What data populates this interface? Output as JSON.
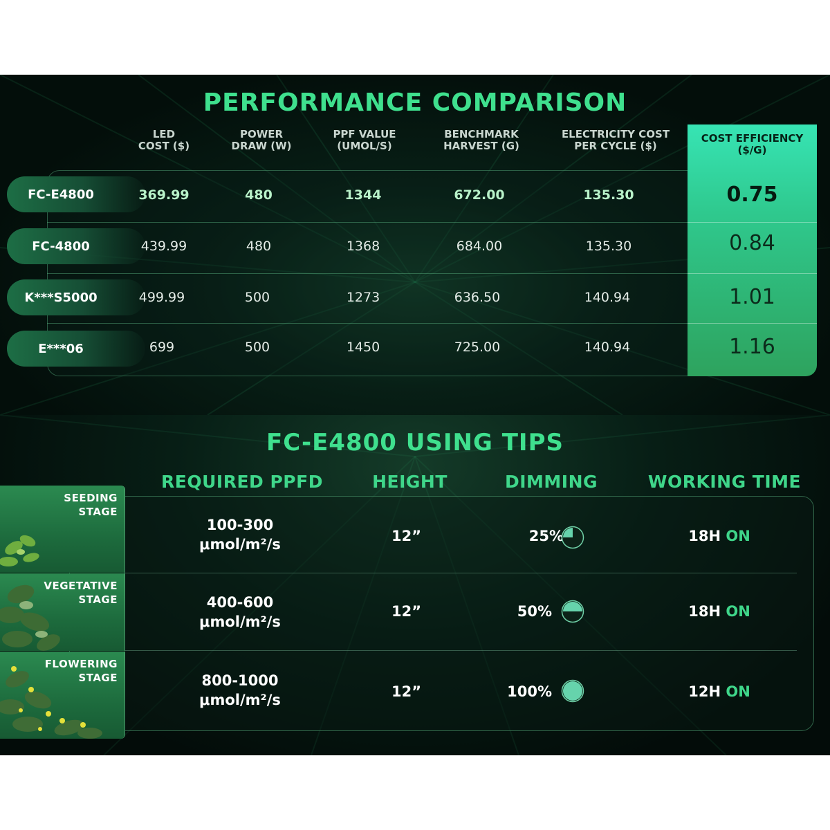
{
  "comparison": {
    "title": "PERFORMANCE COMPARISON",
    "columns": [
      {
        "line1": "LED",
        "line2": "COST ($)"
      },
      {
        "line1": "POWER",
        "line2": "DRAW (W)"
      },
      {
        "line1": "PPF VALUE",
        "line2": "(UMOL/S)"
      },
      {
        "line1": "BENCHMARK",
        "line2": "HARVEST (G)"
      },
      {
        "line1": "ELECTRICITY COST",
        "line2": "PER CYCLE ($)"
      }
    ],
    "efficiency_header": {
      "line1": "COST EFFICIENCY",
      "line2": "($/G)"
    },
    "rows": [
      {
        "model": "FC-E4800",
        "led_cost": "369.99",
        "power": "480",
        "ppf": "1344",
        "harvest": "672.00",
        "electricity": "135.30",
        "efficiency": "0.75"
      },
      {
        "model": "FC-4800",
        "led_cost": "439.99",
        "power": "480",
        "ppf": "1368",
        "harvest": "684.00",
        "electricity": "135.30",
        "efficiency": "0.84"
      },
      {
        "model": "K***S5000",
        "led_cost": "499.99",
        "power": "500",
        "ppf": "1273",
        "harvest": "636.50",
        "electricity": "140.94",
        "efficiency": "1.01"
      },
      {
        "model": "E***06",
        "led_cost": "699",
        "power": "500",
        "ppf": "1450",
        "harvest": "725.00",
        "electricity": "140.94",
        "efficiency": "1.16"
      }
    ],
    "colors": {
      "accent": "#3fe08e",
      "efficiency_top": "#37e4b4",
      "efficiency_bottom": "#2ea35e",
      "pill": "#1d6e45"
    }
  },
  "tips": {
    "title": "FC-E4800 USING TIPS",
    "headers": {
      "ppfd": "REQUIRED PPFD",
      "height": "HEIGHT",
      "dimming": "DIMMING",
      "working_time": "WORKING TIME"
    },
    "stages": [
      {
        "label_line1": "SEEDING",
        "label_line2": "STAGE",
        "ppfd_range": "100-300",
        "ppfd_unit": "μmol/m²/s",
        "height": "12”",
        "dimming": "25%",
        "dimming_level": 0.25,
        "hours": "18H",
        "on": "ON"
      },
      {
        "label_line1": "VEGETATIVE",
        "label_line2": "STAGE",
        "ppfd_range": "400-600",
        "ppfd_unit": "μmol/m²/s",
        "height": "12”",
        "dimming": "50%",
        "dimming_level": 0.5,
        "hours": "18H",
        "on": "ON"
      },
      {
        "label_line1": "FLOWERING",
        "label_line2": "STAGE",
        "ppfd_range": "800-1000",
        "ppfd_unit": "μmol/m²/s",
        "height": "12”",
        "dimming": "100%",
        "dimming_level": 1.0,
        "hours": "12H",
        "on": "ON"
      }
    ],
    "colors": {
      "accent": "#3fd68a",
      "stage_bg": "#2b8a50"
    }
  }
}
